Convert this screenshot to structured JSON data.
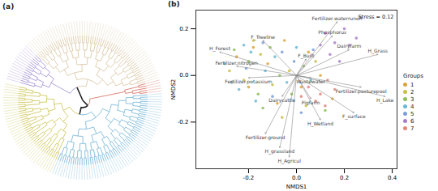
{
  "chart_data": [
    {
      "type": "dendrogram",
      "title": "(a)",
      "clusters": [
        {
          "color": "#9c8ad0",
          "leaves": 15
        },
        {
          "color": "#d8c3a0",
          "leaves": 60
        },
        {
          "color": "#d46a5a",
          "leaves": 5
        },
        {
          "color": "#6fb3d6",
          "leaves": 60
        },
        {
          "color": "#c9c24c",
          "leaves": 40
        }
      ]
    },
    {
      "type": "scatter",
      "title": "(b)",
      "xlabel": "NMDS1",
      "ylabel": "NMDS2",
      "xlim": [
        -0.42,
        0.42
      ],
      "ylim": [
        -0.4,
        0.28
      ],
      "xticks": [
        -0.2,
        {
          "value": 0,
          "label": "0.0"
        },
        0.2,
        0.4
      ],
      "yticks": [
        -0.2,
        {
          "value": 0,
          "label": "0.0"
        },
        0.2
      ],
      "grid": false,
      "legend": "right",
      "legend_title": "Groups",
      "annotations": [
        {
          "text": "Stress = 0.12"
        }
      ],
      "series": [
        {
          "name": "1",
          "color": "#d9a441",
          "points": [
            [
              -0.25,
              0.08
            ],
            [
              -0.18,
              0.12
            ],
            [
              -0.12,
              0.05
            ],
            [
              -0.05,
              0.15
            ],
            [
              0.02,
              -0.05
            ],
            [
              0.1,
              0.0
            ],
            [
              -0.2,
              -0.05
            ],
            [
              0.05,
              0.1
            ],
            [
              -0.08,
              -0.12
            ],
            [
              0.15,
              -0.1
            ]
          ]
        },
        {
          "name": "2",
          "color": "#c8c04a",
          "points": [
            [
              -0.28,
              0.02
            ],
            [
              -0.22,
              -0.02
            ],
            [
              -0.15,
              0.09
            ],
            [
              -0.1,
              -0.04
            ],
            [
              -0.03,
              0.02
            ],
            [
              0.04,
              -0.13
            ],
            [
              -0.18,
              0.15
            ],
            [
              0.08,
              0.06
            ],
            [
              -0.06,
              -0.18
            ]
          ]
        },
        {
          "name": "3",
          "color": "#8fbf5a",
          "points": [
            [
              -0.26,
              0.11
            ],
            [
              -0.2,
              0.06
            ],
            [
              -0.16,
              -0.08
            ],
            [
              -0.11,
              0.12
            ],
            [
              -0.07,
              0.0
            ],
            [
              -0.02,
              -0.08
            ],
            [
              0.03,
              0.04
            ],
            [
              -0.14,
              -0.14
            ],
            [
              0.12,
              -0.15
            ]
          ]
        },
        {
          "name": "4",
          "color": "#6bb8d6",
          "points": [
            [
              -0.3,
              0.05
            ],
            [
              -0.24,
              -0.06
            ],
            [
              -0.19,
              0.1
            ],
            [
              -0.13,
              0.02
            ],
            [
              -0.09,
              0.08
            ],
            [
              -0.04,
              -0.03
            ],
            [
              0.0,
              0.12
            ],
            [
              -0.17,
              -0.11
            ],
            [
              -0.22,
              0.13
            ],
            [
              0.06,
              -0.02
            ]
          ]
        },
        {
          "name": "5",
          "color": "#7d9fd8",
          "points": [
            [
              -0.27,
              -0.03
            ],
            [
              -0.21,
              0.03
            ],
            [
              -0.14,
              0.14
            ],
            [
              -0.1,
              -0.09
            ],
            [
              -0.01,
              0.06
            ],
            [
              0.07,
              0.11
            ],
            [
              -0.06,
              0.1
            ],
            [
              0.02,
              -0.16
            ]
          ]
        },
        {
          "name": "6",
          "color": "#a77fc9",
          "points": [
            [
              0.12,
              0.18
            ],
            [
              0.16,
              0.14
            ],
            [
              0.2,
              0.2
            ],
            [
              0.14,
              0.09
            ],
            [
              0.22,
              0.13
            ],
            [
              0.18,
              0.06
            ],
            [
              0.25,
              0.16
            ],
            [
              0.1,
              0.13
            ]
          ]
        },
        {
          "name": "7",
          "color": "#e2877a",
          "points": [
            [
              0.05,
              -0.05
            ],
            [
              0.1,
              -0.08
            ],
            [
              0.13,
              -0.02
            ],
            [
              0.08,
              -0.11
            ],
            [
              0.16,
              -0.06
            ],
            [
              0.12,
              -0.13
            ],
            [
              0.02,
              -0.09
            ]
          ]
        }
      ],
      "vectors": [
        {
          "label": "H_Forest",
          "x": -0.32,
          "y": 0.1
        },
        {
          "label": "F_Treeline",
          "x": -0.14,
          "y": 0.15
        },
        {
          "label": "Fertilizer.waterrunoff",
          "x": 0.17,
          "y": 0.23
        },
        {
          "label": "Phosphorus",
          "x": 0.15,
          "y": 0.17
        },
        {
          "label": "Dairyfarm",
          "x": 0.22,
          "y": 0.11
        },
        {
          "label": "H_Grass",
          "x": 0.34,
          "y": 0.09
        },
        {
          "label": "Fertilizer.nitrogen",
          "x": -0.25,
          "y": 0.04
        },
        {
          "label": "F_Built",
          "x": 0.04,
          "y": 0.07
        },
        {
          "label": "Fertilizer.potassium",
          "x": -0.2,
          "y": -0.01
        },
        {
          "label": "Wastewater",
          "x": 0.06,
          "y": -0.01
        },
        {
          "label": "Fertilizer.pasturepool",
          "x": 0.27,
          "y": -0.05
        },
        {
          "label": "H_Lake",
          "x": 0.37,
          "y": -0.09
        },
        {
          "label": "F_surface",
          "x": 0.24,
          "y": -0.16
        },
        {
          "label": "H_Wetland",
          "x": 0.1,
          "y": -0.19
        },
        {
          "label": "Pigfarm",
          "x": 0.06,
          "y": -0.1
        },
        {
          "label": "Dairycattle",
          "x": -0.06,
          "y": -0.09
        },
        {
          "label": "Fertilizer.ground",
          "x": -0.13,
          "y": -0.25
        },
        {
          "label": "H_grassland",
          "x": -0.07,
          "y": -0.31
        },
        {
          "label": "H_Agricul",
          "x": -0.03,
          "y": -0.35
        }
      ]
    }
  ]
}
